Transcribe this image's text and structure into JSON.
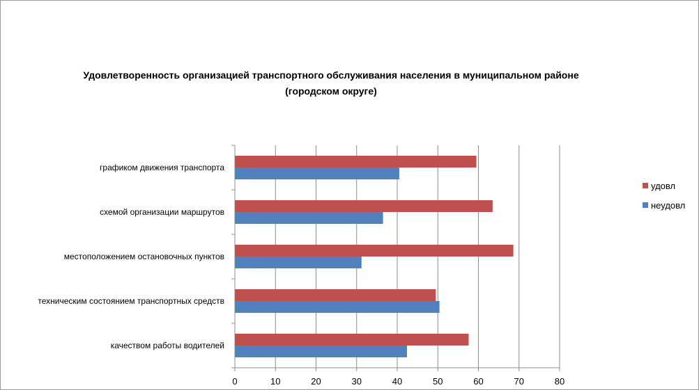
{
  "chart_data": {
    "type": "bar",
    "orientation": "horizontal",
    "title_line1": "Удовлетворенность организацией транспортного обслуживания населения в муниципальном районе",
    "title_line2": "(городском округе)",
    "categories": [
      "графиком движения транспорта",
      "схемой организации маршрутов",
      "местоположением остановочных пунктов",
      "техническим состоянием транспортных средств",
      "качеством работы водителей"
    ],
    "series": [
      {
        "name": "удовл",
        "color": "#c0504d",
        "values": [
          59.5,
          63.5,
          68.6,
          49.5,
          57.6
        ]
      },
      {
        "name": "неудовл",
        "color": "#4f81bd",
        "values": [
          40.5,
          36.5,
          31.2,
          50.4,
          42.4
        ]
      }
    ],
    "xlim": [
      0,
      80
    ],
    "xticks": [
      "0",
      "10",
      "20",
      "30",
      "40",
      "50",
      "60",
      "70",
      "80"
    ],
    "grid": true,
    "legend_position": "right"
  }
}
